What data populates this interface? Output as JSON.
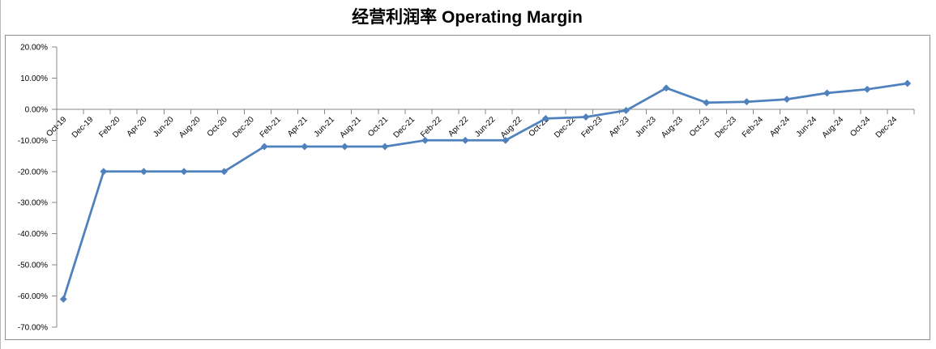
{
  "chart": {
    "title": "经营利润率 Operating Margin"
  },
  "chart_data": {
    "type": "line",
    "title": "经营利润率 Operating Margin",
    "legend": "none",
    "grid": "none",
    "y_axis": {
      "min": -70,
      "max": 20,
      "step": 10,
      "tick_labels": [
        "20.00%",
        "10.00%",
        "0.00%",
        "-10.00%",
        "-20.00%",
        "-30.00%",
        "-40.00%",
        "-50.00%",
        "-60.00%",
        "-70.00%"
      ]
    },
    "x_axis": {
      "months_per_label": 2,
      "total_months": 64,
      "tick_labels": [
        "Oct-19",
        "Dec-19",
        "Feb-20",
        "Apr-20",
        "Jun-20",
        "Aug-20",
        "Oct-20",
        "Dec-20",
        "Feb-21",
        "Apr-21",
        "Jun-21",
        "Aug-21",
        "Oct-21",
        "Dec-21",
        "Feb-22",
        "Apr-22",
        "Jun-22",
        "Aug-22",
        "Oct-22",
        "Dec-22",
        "Feb-23",
        "Apr-23",
        "Jun-23",
        "Aug-23",
        "Oct-23",
        "Dec-23",
        "Feb-24",
        "Apr-24",
        "Jun-24",
        "Aug-24",
        "Oct-24",
        "Dec-24"
      ]
    },
    "series": [
      {
        "name": "经营利润率 Operating Margin",
        "color": "#4f81bd",
        "marker": "diamond",
        "points": [
          [
            "Oct-19",
            -61
          ],
          [
            "Jan-20",
            -20
          ],
          [
            "Apr-20",
            -20
          ],
          [
            "Jul-20",
            -20
          ],
          [
            "Oct-20",
            -20
          ],
          [
            "Jan-21",
            -12
          ],
          [
            "Apr-21",
            -12
          ],
          [
            "Jul-21",
            -12
          ],
          [
            "Oct-21",
            -12
          ],
          [
            "Jan-22",
            -10
          ],
          [
            "Apr-22",
            -10
          ],
          [
            "Jul-22",
            -10
          ],
          [
            "Oct-22",
            -3
          ],
          [
            "Jan-23",
            -2.5
          ],
          [
            "Apr-23",
            -0.4
          ],
          [
            "Jul-23",
            6.8
          ],
          [
            "Oct-23",
            2.1
          ],
          [
            "Jan-24",
            2.4
          ],
          [
            "Apr-24",
            3.2
          ],
          [
            "Jul-24",
            5.2
          ],
          [
            "Oct-24",
            6.4
          ],
          [
            "Jan-25",
            8.3
          ]
        ]
      }
    ],
    "colors": {
      "line": "#4f81bd",
      "axis": "#898989",
      "text": "#000000",
      "frame_border": "#8f8f8f"
    }
  }
}
